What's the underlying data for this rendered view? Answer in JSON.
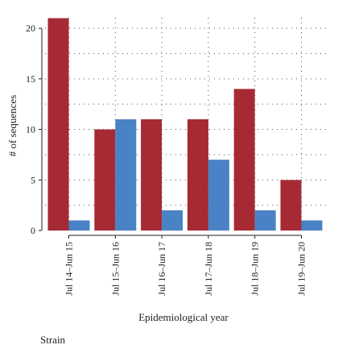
{
  "chart_data": {
    "type": "bar",
    "categories": [
      "Jul 14–Jun 15",
      "Jul 15–Jun 16",
      "Jul 16–Jun 17",
      "Jul 17–Jun 18",
      "Jul 18–Jun 19",
      "Jul 19–Jun 20"
    ],
    "series": [
      {
        "values": [
          21,
          10,
          11,
          11,
          14,
          5
        ],
        "color": "#a52a34"
      },
      {
        "values": [
          1,
          11,
          2,
          7,
          2,
          1
        ],
        "color": "#4a82c6"
      }
    ],
    "xlabel": "Epidemiological year",
    "ylabel": "# of sequences",
    "ylim": [
      0,
      22
    ],
    "yticks": [
      0,
      5,
      10,
      15,
      20
    ],
    "grid": "dotted",
    "legend": {
      "title": "Strain",
      "position": "bottom-left"
    }
  }
}
